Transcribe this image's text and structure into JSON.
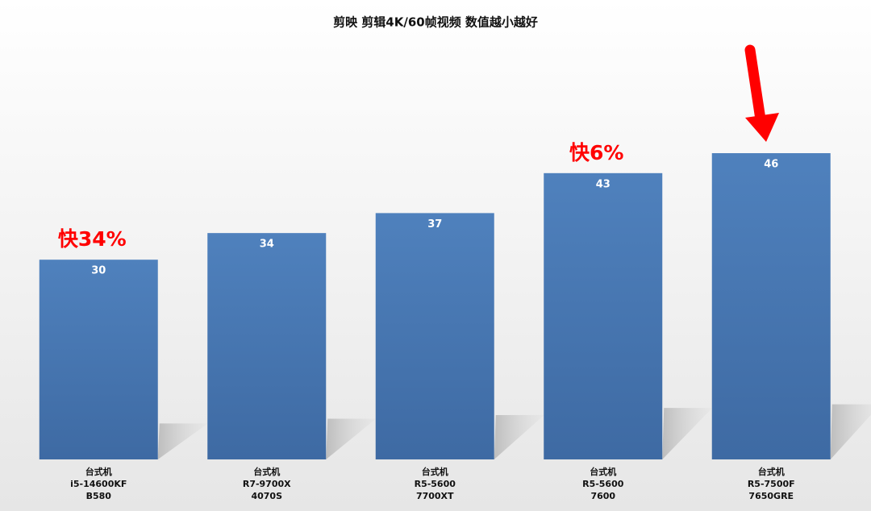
{
  "chart_data": {
    "type": "bar",
    "title": "剪映 剪辑4K/60帧视频 数值越小越好",
    "categories": [
      [
        "台式机",
        "i5-14600KF",
        "B580"
      ],
      [
        "台式机",
        "R7-9700X",
        "4070S"
      ],
      [
        "台式机",
        "R5-5600",
        "7700XT"
      ],
      [
        "台式机",
        "R5-5600",
        "7600"
      ],
      [
        "台式机",
        "R5-7500F",
        "7650GRE"
      ]
    ],
    "values": [
      30,
      34,
      37,
      43,
      46
    ],
    "annotations": [
      "快34%",
      null,
      null,
      "快6%",
      null
    ],
    "color": "#4f81bd",
    "ylim": [
      0,
      50
    ]
  }
}
